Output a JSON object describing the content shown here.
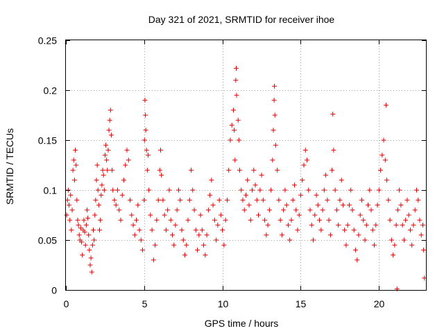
{
  "chart_data": {
    "type": "scatter",
    "title": "Day 321 of 2021, SRMTID for receiver ihoe",
    "xlabel": "GPS time / hours",
    "ylabel": "SRMTID / TECUs",
    "xlim": [
      0,
      23
    ],
    "ylim": [
      0,
      0.25
    ],
    "x_ticks": [
      0,
      5,
      10,
      15,
      20
    ],
    "x_tick_labels": [
      "0",
      "5",
      "10",
      "15",
      "20"
    ],
    "y_ticks": [
      0,
      0.05,
      0.1,
      0.15,
      0.2,
      0.25
    ],
    "y_tick_labels": [
      "0",
      "0.05",
      "0.1",
      "0.15",
      "0.2",
      "0.25"
    ],
    "grid": true,
    "marker": "+",
    "color": "#e00000",
    "series": [
      {
        "name": "SRMTID",
        "points": [
          [
            0.05,
            0.075
          ],
          [
            0.1,
            0.09
          ],
          [
            0.15,
            0.1
          ],
          [
            0.2,
            0.085
          ],
          [
            0.25,
            0.07
          ],
          [
            0.3,
            0.095
          ],
          [
            0.35,
            0.06
          ],
          [
            0.4,
            0.08
          ],
          [
            0.45,
            0.12
          ],
          [
            0.5,
            0.13
          ],
          [
            0.55,
            0.11
          ],
          [
            0.6,
            0.14
          ],
          [
            0.65,
            0.125
          ],
          [
            0.7,
            0.09
          ],
          [
            0.75,
            0.07
          ],
          [
            0.8,
            0.065
          ],
          [
            0.85,
            0.055
          ],
          [
            0.9,
            0.05
          ],
          [
            0.95,
            0.062
          ],
          [
            1.0,
            0.048
          ],
          [
            1.05,
            0.035
          ],
          [
            1.1,
            0.06
          ],
          [
            1.15,
            0.07
          ],
          [
            1.2,
            0.058
          ],
          [
            1.25,
            0.045
          ],
          [
            1.3,
            0.065
          ],
          [
            1.35,
            0.08
          ],
          [
            1.4,
            0.072
          ],
          [
            1.45,
            0.055
          ],
          [
            1.5,
            0.04
          ],
          [
            1.55,
            0.025
          ],
          [
            1.6,
            0.032
          ],
          [
            1.65,
            0.018
          ],
          [
            1.7,
            0.045
          ],
          [
            1.75,
            0.06
          ],
          [
            1.8,
            0.05
          ],
          [
            1.85,
            0.075
          ],
          [
            1.9,
            0.09
          ],
          [
            1.95,
            0.11
          ],
          [
            2.0,
            0.125
          ],
          [
            2.05,
            0.1
          ],
          [
            2.1,
            0.085
          ],
          [
            2.15,
            0.06
          ],
          [
            2.2,
            0.07
          ],
          [
            2.25,
            0.095
          ],
          [
            2.3,
            0.105
          ],
          [
            2.35,
            0.12
          ],
          [
            2.4,
            0.115
          ],
          [
            2.45,
            0.1
          ],
          [
            2.5,
            0.135
          ],
          [
            2.55,
            0.145
          ],
          [
            2.6,
            0.13
          ],
          [
            2.65,
            0.12
          ],
          [
            2.7,
            0.14
          ],
          [
            2.75,
            0.16
          ],
          [
            2.8,
            0.17
          ],
          [
            2.85,
            0.18
          ],
          [
            2.9,
            0.155
          ],
          [
            2.95,
            0.12
          ],
          [
            3.0,
            0.1
          ],
          [
            3.1,
            0.09
          ],
          [
            3.2,
            0.085
          ],
          [
            3.3,
            0.1
          ],
          [
            3.4,
            0.08
          ],
          [
            3.5,
            0.07
          ],
          [
            3.6,
            0.095
          ],
          [
            3.7,
            0.11
          ],
          [
            3.8,
            0.125
          ],
          [
            3.9,
            0.14
          ],
          [
            4.0,
            0.13
          ],
          [
            4.1,
            0.09
          ],
          [
            4.2,
            0.075
          ],
          [
            4.3,
            0.065
          ],
          [
            4.4,
            0.055
          ],
          [
            4.5,
            0.07
          ],
          [
            4.6,
            0.085
          ],
          [
            4.7,
            0.06
          ],
          [
            4.8,
            0.05
          ],
          [
            4.9,
            0.04
          ],
          [
            5.0,
            0.09
          ],
          [
            5.02,
            0.15
          ],
          [
            5.05,
            0.19
          ],
          [
            5.08,
            0.175
          ],
          [
            5.1,
            0.16
          ],
          [
            5.15,
            0.14
          ],
          [
            5.2,
            0.12
          ],
          [
            5.25,
            0.135
          ],
          [
            5.3,
            0.1
          ],
          [
            5.4,
            0.075
          ],
          [
            5.5,
            0.06
          ],
          [
            5.6,
            0.03
          ],
          [
            5.7,
            0.045
          ],
          [
            5.8,
            0.07
          ],
          [
            5.9,
            0.09
          ],
          [
            6.0,
            0.12
          ],
          [
            6.05,
            0.14
          ],
          [
            6.1,
            0.115
          ],
          [
            6.2,
            0.09
          ],
          [
            6.3,
            0.075
          ],
          [
            6.4,
            0.06
          ],
          [
            6.5,
            0.08
          ],
          [
            6.6,
            0.1
          ],
          [
            6.7,
            0.07
          ],
          [
            6.8,
            0.055
          ],
          [
            6.9,
            0.045
          ],
          [
            7.0,
            0.065
          ],
          [
            7.1,
            0.08
          ],
          [
            7.2,
            0.1
          ],
          [
            7.3,
            0.09
          ],
          [
            7.4,
            0.06
          ],
          [
            7.5,
            0.05
          ],
          [
            7.6,
            0.035
          ],
          [
            7.7,
            0.045
          ],
          [
            7.8,
            0.07
          ],
          [
            7.9,
            0.09
          ],
          [
            8.0,
            0.12
          ],
          [
            8.1,
            0.1
          ],
          [
            8.2,
            0.08
          ],
          [
            8.3,
            0.06
          ],
          [
            8.4,
            0.04
          ],
          [
            8.5,
            0.055
          ],
          [
            8.6,
            0.075
          ],
          [
            8.7,
            0.06
          ],
          [
            8.8,
            0.045
          ],
          [
            8.9,
            0.035
          ],
          [
            9.0,
            0.055
          ],
          [
            9.1,
            0.08
          ],
          [
            9.2,
            0.095
          ],
          [
            9.3,
            0.11
          ],
          [
            9.4,
            0.085
          ],
          [
            9.5,
            0.07
          ],
          [
            9.6,
            0.05
          ],
          [
            9.7,
            0.065
          ],
          [
            9.8,
            0.09
          ],
          [
            9.9,
            0.075
          ],
          [
            10.0,
            0.06
          ],
          [
            10.1,
            0.045
          ],
          [
            10.2,
            0.07
          ],
          [
            10.3,
            0.09
          ],
          [
            10.4,
            0.12
          ],
          [
            10.5,
            0.15
          ],
          [
            10.6,
            0.165
          ],
          [
            10.7,
            0.18
          ],
          [
            10.75,
            0.16
          ],
          [
            10.8,
            0.13
          ],
          [
            10.85,
            0.21
          ],
          [
            10.88,
            0.222
          ],
          [
            10.9,
            0.195
          ],
          [
            11.0,
            0.17
          ],
          [
            11.05,
            0.15
          ],
          [
            11.1,
            0.12
          ],
          [
            11.2,
            0.1
          ],
          [
            11.3,
            0.09
          ],
          [
            11.4,
            0.08
          ],
          [
            11.5,
            0.095
          ],
          [
            11.6,
            0.11
          ],
          [
            11.7,
            0.085
          ],
          [
            11.8,
            0.07
          ],
          [
            11.9,
            0.1
          ],
          [
            12.0,
            0.12
          ],
          [
            12.1,
            0.105
          ],
          [
            12.2,
            0.09
          ],
          [
            12.3,
            0.075
          ],
          [
            12.4,
            0.1
          ],
          [
            12.5,
            0.115
          ],
          [
            12.6,
            0.09
          ],
          [
            12.7,
            0.07
          ],
          [
            12.8,
            0.055
          ],
          [
            12.9,
            0.065
          ],
          [
            13.0,
            0.08
          ],
          [
            13.1,
            0.1
          ],
          [
            13.2,
            0.13
          ],
          [
            13.25,
            0.16
          ],
          [
            13.3,
            0.19
          ],
          [
            13.32,
            0.204
          ],
          [
            13.35,
            0.175
          ],
          [
            13.4,
            0.145
          ],
          [
            13.5,
            0.12
          ],
          [
            13.6,
            0.09
          ],
          [
            13.7,
            0.07
          ],
          [
            13.8,
            0.055
          ],
          [
            13.9,
            0.08
          ],
          [
            14.0,
            0.1
          ],
          [
            14.1,
            0.085
          ],
          [
            14.2,
            0.065
          ],
          [
            14.3,
            0.05
          ],
          [
            14.4,
            0.07
          ],
          [
            14.5,
            0.09
          ],
          [
            14.6,
            0.105
          ],
          [
            14.7,
            0.08
          ],
          [
            14.8,
            0.06
          ],
          [
            14.9,
            0.075
          ],
          [
            15.0,
            0.095
          ],
          [
            15.1,
            0.11
          ],
          [
            15.2,
            0.125
          ],
          [
            15.3,
            0.14
          ],
          [
            15.4,
            0.13
          ],
          [
            15.5,
            0.1
          ],
          [
            15.6,
            0.08
          ],
          [
            15.7,
            0.065
          ],
          [
            15.8,
            0.05
          ],
          [
            15.9,
            0.075
          ],
          [
            16.0,
            0.095
          ],
          [
            16.1,
            0.085
          ],
          [
            16.2,
            0.07
          ],
          [
            16.3,
            0.06
          ],
          [
            16.4,
            0.08
          ],
          [
            16.5,
            0.1
          ],
          [
            16.6,
            0.115
          ],
          [
            16.7,
            0.09
          ],
          [
            16.8,
            0.07
          ],
          [
            16.9,
            0.055
          ],
          [
            17.0,
            0.12
          ],
          [
            17.05,
            0.176
          ],
          [
            17.1,
            0.14
          ],
          [
            17.2,
            0.1
          ],
          [
            17.3,
            0.08
          ],
          [
            17.4,
            0.065
          ],
          [
            17.5,
            0.09
          ],
          [
            17.6,
            0.11
          ],
          [
            17.7,
            0.085
          ],
          [
            17.8,
            0.06
          ],
          [
            17.9,
            0.045
          ],
          [
            18.0,
            0.065
          ],
          [
            18.1,
            0.085
          ],
          [
            18.2,
            0.1
          ],
          [
            18.3,
            0.08
          ],
          [
            18.4,
            0.06
          ],
          [
            18.5,
            0.04
          ],
          [
            18.6,
            0.03
          ],
          [
            18.7,
            0.055
          ],
          [
            18.8,
            0.075
          ],
          [
            18.9,
            0.09
          ],
          [
            19.0,
            0.07
          ],
          [
            19.1,
            0.05
          ],
          [
            19.2,
            0.065
          ],
          [
            19.3,
            0.085
          ],
          [
            19.4,
            0.1
          ],
          [
            19.5,
            0.08
          ],
          [
            19.6,
            0.06
          ],
          [
            19.7,
            0.045
          ],
          [
            19.8,
            0.065
          ],
          [
            19.9,
            0.085
          ],
          [
            20.0,
            0.1
          ],
          [
            20.1,
            0.12
          ],
          [
            20.2,
            0.135
          ],
          [
            20.3,
            0.15
          ],
          [
            20.4,
            0.13
          ],
          [
            20.45,
            0.185
          ],
          [
            20.5,
            0.11
          ],
          [
            20.6,
            0.09
          ],
          [
            20.7,
            0.07
          ],
          [
            20.8,
            0.05
          ],
          [
            20.9,
            0.035
          ],
          [
            21.0,
            0.045
          ],
          [
            21.1,
            0.065
          ],
          [
            21.15,
            0.001
          ],
          [
            21.2,
            0.08
          ],
          [
            21.3,
            0.1
          ],
          [
            21.4,
            0.085
          ],
          [
            21.5,
            0.065
          ],
          [
            21.6,
            0.05
          ],
          [
            21.7,
            0.07
          ],
          [
            21.8,
            0.09
          ],
          [
            21.9,
            0.075
          ],
          [
            22.0,
            0.06
          ],
          [
            22.1,
            0.045
          ],
          [
            22.2,
            0.065
          ],
          [
            22.3,
            0.08
          ],
          [
            22.4,
            0.1
          ],
          [
            22.5,
            0.09
          ],
          [
            22.6,
            0.07
          ],
          [
            22.7,
            0.055
          ],
          [
            22.8,
            0.065
          ],
          [
            22.85,
            0.04
          ],
          [
            22.9,
            0.012
          ]
        ]
      }
    ]
  }
}
